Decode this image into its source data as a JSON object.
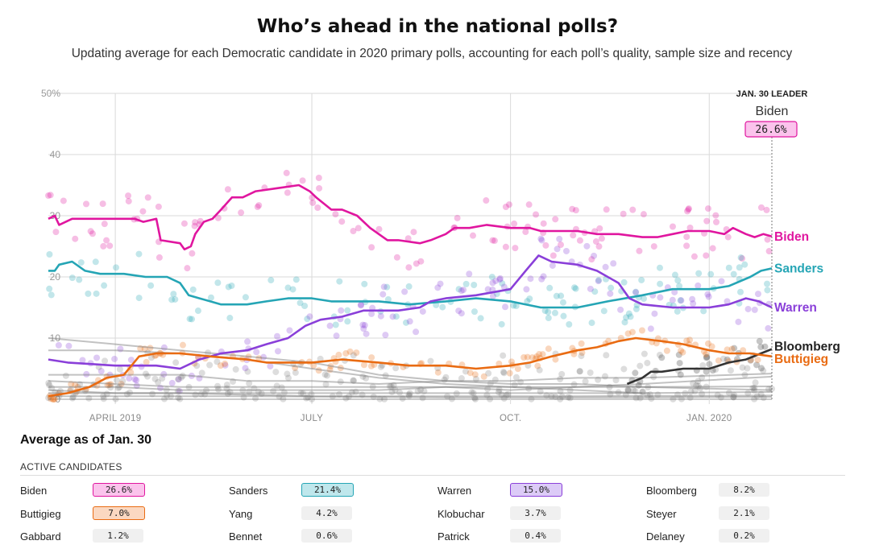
{
  "header": {
    "title": "Who’s ahead in the national polls?",
    "subtitle": "Updating average for each Democratic candidate in 2020 primary polls, accounting for each poll’s quality, sample size and recency"
  },
  "chart_data": {
    "type": "line",
    "y_ticks": [
      "50%",
      "40",
      "30",
      "20",
      "10",
      "0"
    ],
    "y_tick_values": [
      50,
      40,
      30,
      20,
      10,
      0
    ],
    "ylim": [
      0,
      50
    ],
    "x_ticks": [
      "APRIL 2019",
      "JULY",
      "OCT.",
      "JAN. 2020"
    ],
    "x_tick_dates": [
      "2019-04-01",
      "2019-07-01",
      "2019-10-01",
      "2020-01-01"
    ],
    "xlim": [
      "2019-03-01",
      "2020-01-30"
    ],
    "grid": true,
    "leader": {
      "label": "JAN. 30 LEADER",
      "name": "Biden",
      "value": "26.6%"
    },
    "series": [
      {
        "name": "Biden",
        "color": "#e0169f",
        "points": [
          [
            "2019-03-01",
            29.5
          ],
          [
            "2019-03-04",
            30
          ],
          [
            "2019-03-06",
            28.5
          ],
          [
            "2019-03-12",
            29.5
          ],
          [
            "2019-04-10",
            29.5
          ],
          [
            "2019-04-14",
            29
          ],
          [
            "2019-04-20",
            29.5
          ],
          [
            "2019-04-22",
            26
          ],
          [
            "2019-05-01",
            25.5
          ],
          [
            "2019-05-03",
            24.5
          ],
          [
            "2019-05-06",
            25
          ],
          [
            "2019-05-08",
            27
          ],
          [
            "2019-05-12",
            29
          ],
          [
            "2019-05-16",
            29.5
          ],
          [
            "2019-05-20",
            31
          ],
          [
            "2019-05-25",
            33
          ],
          [
            "2019-05-30",
            33
          ],
          [
            "2019-06-05",
            34
          ],
          [
            "2019-06-15",
            34.5
          ],
          [
            "2019-06-25",
            35
          ],
          [
            "2019-06-30",
            34
          ],
          [
            "2019-07-03",
            33
          ],
          [
            "2019-07-10",
            31
          ],
          [
            "2019-07-15",
            31
          ],
          [
            "2019-07-22",
            30
          ],
          [
            "2019-07-28",
            28
          ],
          [
            "2019-08-05",
            26
          ],
          [
            "2019-08-10",
            26
          ],
          [
            "2019-08-20",
            25.5
          ],
          [
            "2019-08-25",
            26
          ],
          [
            "2019-09-01",
            27
          ],
          [
            "2019-09-05",
            28
          ],
          [
            "2019-09-12",
            28
          ],
          [
            "2019-09-20",
            28.5
          ],
          [
            "2019-10-01",
            28
          ],
          [
            "2019-10-10",
            28
          ],
          [
            "2019-10-15",
            27.5
          ],
          [
            "2019-10-25",
            27.5
          ],
          [
            "2019-11-01",
            27.5
          ],
          [
            "2019-11-10",
            27
          ],
          [
            "2019-11-20",
            27
          ],
          [
            "2019-12-01",
            26.5
          ],
          [
            "2019-12-08",
            26.5
          ],
          [
            "2019-12-15",
            27
          ],
          [
            "2019-12-22",
            27.5
          ],
          [
            "2020-01-01",
            27.5
          ],
          [
            "2020-01-08",
            27
          ],
          [
            "2020-01-12",
            28
          ],
          [
            "2020-01-18",
            27
          ],
          [
            "2020-01-22",
            26.5
          ],
          [
            "2020-01-26",
            27
          ],
          [
            "2020-01-30",
            26.6
          ]
        ]
      },
      {
        "name": "Sanders",
        "color": "#25a5b5",
        "points": [
          [
            "2019-03-01",
            21
          ],
          [
            "2019-03-04",
            21
          ],
          [
            "2019-03-06",
            22
          ],
          [
            "2019-03-12",
            22.5
          ],
          [
            "2019-03-18",
            21
          ],
          [
            "2019-03-25",
            20.5
          ],
          [
            "2019-04-05",
            20.5
          ],
          [
            "2019-04-15",
            20
          ],
          [
            "2019-04-25",
            20
          ],
          [
            "2019-05-01",
            19
          ],
          [
            "2019-05-05",
            17
          ],
          [
            "2019-05-10",
            16.5
          ],
          [
            "2019-05-15",
            16
          ],
          [
            "2019-05-20",
            15.5
          ],
          [
            "2019-06-01",
            15.5
          ],
          [
            "2019-06-10",
            16
          ],
          [
            "2019-06-20",
            16.5
          ],
          [
            "2019-07-01",
            16.5
          ],
          [
            "2019-07-10",
            16
          ],
          [
            "2019-07-20",
            16
          ],
          [
            "2019-08-01",
            16
          ],
          [
            "2019-08-15",
            15.5
          ],
          [
            "2019-09-01",
            16
          ],
          [
            "2019-09-15",
            16.5
          ],
          [
            "2019-10-01",
            16
          ],
          [
            "2019-10-15",
            15
          ],
          [
            "2019-11-01",
            15
          ],
          [
            "2019-11-15",
            16
          ],
          [
            "2019-12-01",
            17
          ],
          [
            "2019-12-15",
            18
          ],
          [
            "2020-01-01",
            18
          ],
          [
            "2020-01-10",
            18.5
          ],
          [
            "2020-01-20",
            20
          ],
          [
            "2020-01-25",
            21
          ],
          [
            "2020-01-30",
            21.4
          ]
        ]
      },
      {
        "name": "Warren",
        "color": "#8a3fd9",
        "points": [
          [
            "2019-03-01",
            6.5
          ],
          [
            "2019-03-10",
            6
          ],
          [
            "2019-04-01",
            5.5
          ],
          [
            "2019-04-20",
            5.5
          ],
          [
            "2019-05-01",
            5
          ],
          [
            "2019-05-10",
            6.5
          ],
          [
            "2019-05-20",
            7.5
          ],
          [
            "2019-06-01",
            8
          ],
          [
            "2019-06-10",
            9
          ],
          [
            "2019-06-20",
            10
          ],
          [
            "2019-06-28",
            12
          ],
          [
            "2019-07-05",
            13
          ],
          [
            "2019-07-15",
            13.5
          ],
          [
            "2019-07-25",
            14.5
          ],
          [
            "2019-08-01",
            14.5
          ],
          [
            "2019-08-10",
            14.5
          ],
          [
            "2019-08-20",
            15
          ],
          [
            "2019-08-25",
            16
          ],
          [
            "2019-09-01",
            16.5
          ],
          [
            "2019-09-15",
            17
          ],
          [
            "2019-10-01",
            18
          ],
          [
            "2019-10-08",
            21
          ],
          [
            "2019-10-14",
            23.5
          ],
          [
            "2019-10-20",
            22.5
          ],
          [
            "2019-11-01",
            22
          ],
          [
            "2019-11-10",
            21
          ],
          [
            "2019-11-20",
            19
          ],
          [
            "2019-11-25",
            16.5
          ],
          [
            "2019-12-01",
            15.5
          ],
          [
            "2019-12-15",
            15
          ],
          [
            "2020-01-01",
            15
          ],
          [
            "2020-01-10",
            15.5
          ],
          [
            "2020-01-18",
            16.5
          ],
          [
            "2020-01-24",
            16
          ],
          [
            "2020-01-30",
            15
          ]
        ]
      },
      {
        "name": "Bloomberg",
        "color": "#333333",
        "points": [
          [
            "2019-11-24",
            2.5
          ],
          [
            "2019-12-01",
            3.5
          ],
          [
            "2019-12-05",
            4.5
          ],
          [
            "2019-12-10",
            4.5
          ],
          [
            "2019-12-20",
            5
          ],
          [
            "2020-01-01",
            5
          ],
          [
            "2020-01-10",
            6
          ],
          [
            "2020-01-18",
            6.5
          ],
          [
            "2020-01-25",
            7.5
          ],
          [
            "2020-01-30",
            8.2
          ]
        ]
      },
      {
        "name": "Buttigieg",
        "color": "#e96b12",
        "points": [
          [
            "2019-03-01",
            0.5
          ],
          [
            "2019-03-10",
            1
          ],
          [
            "2019-03-20",
            2
          ],
          [
            "2019-03-28",
            3.5
          ],
          [
            "2019-04-05",
            4
          ],
          [
            "2019-04-12",
            7
          ],
          [
            "2019-04-20",
            7.5
          ],
          [
            "2019-05-01",
            7.5
          ],
          [
            "2019-05-15",
            7
          ],
          [
            "2019-06-01",
            6.5
          ],
          [
            "2019-06-10",
            6
          ],
          [
            "2019-06-20",
            6
          ],
          [
            "2019-07-01",
            6
          ],
          [
            "2019-07-15",
            6.5
          ],
          [
            "2019-08-01",
            6
          ],
          [
            "2019-08-15",
            5.5
          ],
          [
            "2019-09-01",
            5.5
          ],
          [
            "2019-09-15",
            5
          ],
          [
            "2019-10-01",
            5.5
          ],
          [
            "2019-10-10",
            6
          ],
          [
            "2019-10-20",
            7
          ],
          [
            "2019-11-01",
            8
          ],
          [
            "2019-11-10",
            8.5
          ],
          [
            "2019-11-20",
            9.5
          ],
          [
            "2019-11-28",
            10
          ],
          [
            "2019-12-10",
            9.5
          ],
          [
            "2019-12-20",
            9
          ],
          [
            "2020-01-01",
            8
          ],
          [
            "2020-01-10",
            7.5
          ],
          [
            "2020-01-20",
            7.5
          ],
          [
            "2020-01-30",
            7.0
          ]
        ]
      }
    ],
    "background_series": [
      {
        "points": [
          [
            "2019-03-01",
            10
          ],
          [
            "2019-04-01",
            9
          ],
          [
            "2019-05-01",
            8
          ],
          [
            "2019-06-01",
            7
          ],
          [
            "2019-07-01",
            6
          ],
          [
            "2019-08-01",
            4
          ],
          [
            "2019-09-01",
            3
          ],
          [
            "2019-10-01",
            2.5
          ],
          [
            "2019-11-01",
            2.5
          ],
          [
            "2019-12-01",
            2
          ],
          [
            "2020-01-30",
            1.5
          ]
        ]
      },
      {
        "points": [
          [
            "2019-03-01",
            8
          ],
          [
            "2019-04-01",
            8
          ],
          [
            "2019-05-01",
            7.5
          ],
          [
            "2019-06-01",
            6.5
          ],
          [
            "2019-07-01",
            5
          ],
          [
            "2019-08-01",
            3.5
          ],
          [
            "2019-09-01",
            2.5
          ],
          [
            "2019-10-01",
            2
          ],
          [
            "2019-11-01",
            1.5
          ],
          [
            "2019-12-01",
            1
          ]
        ]
      },
      {
        "points": [
          [
            "2019-03-01",
            4
          ],
          [
            "2019-04-01",
            4
          ],
          [
            "2019-05-01",
            4
          ],
          [
            "2019-06-01",
            3
          ],
          [
            "2019-07-01",
            3
          ],
          [
            "2019-08-01",
            2.5
          ],
          [
            "2019-09-01",
            3
          ],
          [
            "2019-10-01",
            3
          ],
          [
            "2019-11-01",
            3.5
          ],
          [
            "2019-12-01",
            3.5
          ],
          [
            "2020-01-30",
            4.2
          ]
        ]
      },
      {
        "points": [
          [
            "2019-03-01",
            3
          ],
          [
            "2019-04-01",
            2.5
          ],
          [
            "2019-05-01",
            2
          ],
          [
            "2019-06-01",
            2
          ],
          [
            "2019-07-01",
            2
          ],
          [
            "2019-08-01",
            2
          ],
          [
            "2019-09-01",
            2
          ],
          [
            "2019-10-01",
            1.5
          ],
          [
            "2019-11-01",
            2
          ],
          [
            "2019-12-01",
            2.5
          ],
          [
            "2020-01-30",
            3.7
          ]
        ]
      },
      {
        "points": [
          [
            "2019-03-01",
            2
          ],
          [
            "2019-04-01",
            2
          ],
          [
            "2019-05-01",
            1.5
          ],
          [
            "2019-06-01",
            1.5
          ],
          [
            "2019-07-01",
            1.5
          ],
          [
            "2019-08-01",
            1.5
          ],
          [
            "2019-09-01",
            2
          ],
          [
            "2019-10-01",
            2
          ],
          [
            "2019-11-01",
            2
          ],
          [
            "2019-12-01",
            2
          ],
          [
            "2020-01-30",
            2.1
          ]
        ]
      },
      {
        "points": [
          [
            "2019-03-01",
            1.5
          ],
          [
            "2019-04-01",
            1
          ],
          [
            "2019-05-01",
            1
          ],
          [
            "2019-06-01",
            1
          ],
          [
            "2019-07-01",
            1
          ],
          [
            "2019-08-01",
            1
          ],
          [
            "2019-09-01",
            1
          ],
          [
            "2019-10-01",
            1
          ],
          [
            "2019-11-01",
            1
          ],
          [
            "2019-12-01",
            1
          ],
          [
            "2020-01-30",
            1.2
          ]
        ]
      },
      {
        "points": [
          [
            "2019-03-01",
            1
          ],
          [
            "2019-05-01",
            1
          ],
          [
            "2019-07-01",
            0.5
          ],
          [
            "2019-09-01",
            0.5
          ],
          [
            "2019-11-01",
            0.5
          ],
          [
            "2020-01-30",
            0.6
          ]
        ]
      },
      {
        "points": [
          [
            "2019-03-01",
            0.5
          ],
          [
            "2019-06-01",
            0.5
          ],
          [
            "2019-09-01",
            0.3
          ],
          [
            "2019-12-01",
            0.3
          ],
          [
            "2020-01-30",
            0.4
          ]
        ]
      }
    ],
    "end_labels": [
      {
        "name": "Biden",
        "value": 26.6,
        "color": "#e0169f"
      },
      {
        "name": "Sanders",
        "value": 21.4,
        "color": "#25a5b5"
      },
      {
        "name": "Warren",
        "value": 15.0,
        "color": "#8a3fd9"
      },
      {
        "name": "Bloomberg",
        "value": 8.2,
        "color": "#222222"
      },
      {
        "name": "Buttigieg",
        "value": 7.0,
        "color": "#e96b12"
      }
    ],
    "poll_dot_colors": [
      "#e0169f",
      "#25a5b5",
      "#8a3fd9",
      "#e96b12",
      "#444444"
    ]
  },
  "averages": {
    "title": "Average as of Jan. 30",
    "section_label": "ACTIVE CANDIDATES",
    "rows": [
      [
        {
          "name": "Biden",
          "value": "26.6%",
          "color": "#fbc3ec",
          "border": "#e0169f"
        },
        {
          "name": "Sanders",
          "value": "21.4%",
          "color": "#bfe7ec",
          "border": "#25a5b5"
        },
        {
          "name": "Warren",
          "value": "15.0%",
          "color": "#dccbf7",
          "border": "#8a3fd9"
        },
        {
          "name": "Bloomberg",
          "value": "8.2%",
          "color": "",
          "border": ""
        }
      ],
      [
        {
          "name": "Buttigieg",
          "value": "7.0%",
          "color": "#fbd8c1",
          "border": "#e96b12"
        },
        {
          "name": "Yang",
          "value": "4.2%",
          "color": "",
          "border": ""
        },
        {
          "name": "Klobuchar",
          "value": "3.7%",
          "color": "",
          "border": ""
        },
        {
          "name": "Steyer",
          "value": "2.1%",
          "color": "",
          "border": ""
        }
      ],
      [
        {
          "name": "Gabbard",
          "value": "1.2%",
          "color": "",
          "border": ""
        },
        {
          "name": "Bennet",
          "value": "0.6%",
          "color": "",
          "border": ""
        },
        {
          "name": "Patrick",
          "value": "0.4%",
          "color": "",
          "border": ""
        },
        {
          "name": "Delaney",
          "value": "0.2%",
          "color": "",
          "border": ""
        }
      ]
    ]
  }
}
